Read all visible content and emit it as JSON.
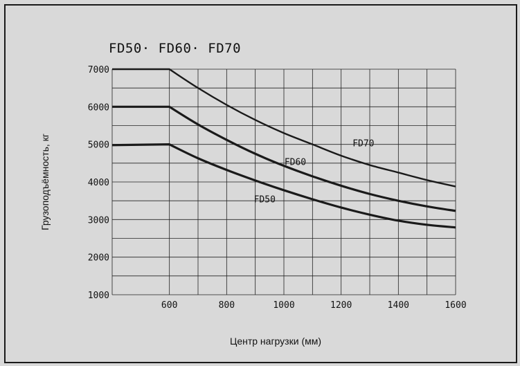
{
  "chart_data": {
    "type": "line",
    "title": "FD50· FD60· FD70",
    "xlabel": "Центр нагрузки (мм)",
    "ylabel": "Грузоподъёмность, кг",
    "xlim": [
      400,
      1600
    ],
    "ylim": [
      1000,
      7000
    ],
    "xticks": [
      600,
      800,
      1000,
      1200,
      1400,
      1600
    ],
    "yticks": [
      1000,
      2000,
      3000,
      4000,
      5000,
      6000,
      7000
    ],
    "x_gridlines": [
      600,
      700,
      800,
      900,
      1000,
      1100,
      1200,
      1300,
      1400,
      1500,
      1600
    ],
    "y_gridlines": [
      1000,
      1500,
      2000,
      2500,
      3000,
      3500,
      4000,
      4500,
      5000,
      5500,
      6000,
      6500,
      7000
    ],
    "grid": true,
    "series": [
      {
        "name": "FD70",
        "x": [
          400,
          600,
          700,
          800,
          900,
          1000,
          1100,
          1200,
          1300,
          1400,
          1500,
          1600
        ],
        "y": [
          7000,
          7000,
          6500,
          6050,
          5650,
          5300,
          5000,
          4700,
          4450,
          4250,
          4050,
          3880
        ]
      },
      {
        "name": "FD60",
        "x": [
          400,
          600,
          700,
          800,
          900,
          1000,
          1100,
          1200,
          1300,
          1400,
          1500,
          1600
        ],
        "y": [
          6000,
          6000,
          5530,
          5120,
          4750,
          4430,
          4150,
          3900,
          3680,
          3500,
          3350,
          3230
        ]
      },
      {
        "name": "FD50",
        "x": [
          400,
          600,
          700,
          800,
          900,
          1000,
          1100,
          1200,
          1300,
          1400,
          1500,
          1600
        ],
        "y": [
          4980,
          5000,
          4630,
          4320,
          4040,
          3780,
          3540,
          3320,
          3130,
          2970,
          2860,
          2790
        ]
      }
    ],
    "series_label_anchor": [
      {
        "name": "FD70",
        "x": 1240,
        "y": 4950
      },
      {
        "name": "FD60",
        "x": 1002,
        "y": 4450
      },
      {
        "name": "FD50",
        "x": 895,
        "y": 3460
      }
    ]
  }
}
